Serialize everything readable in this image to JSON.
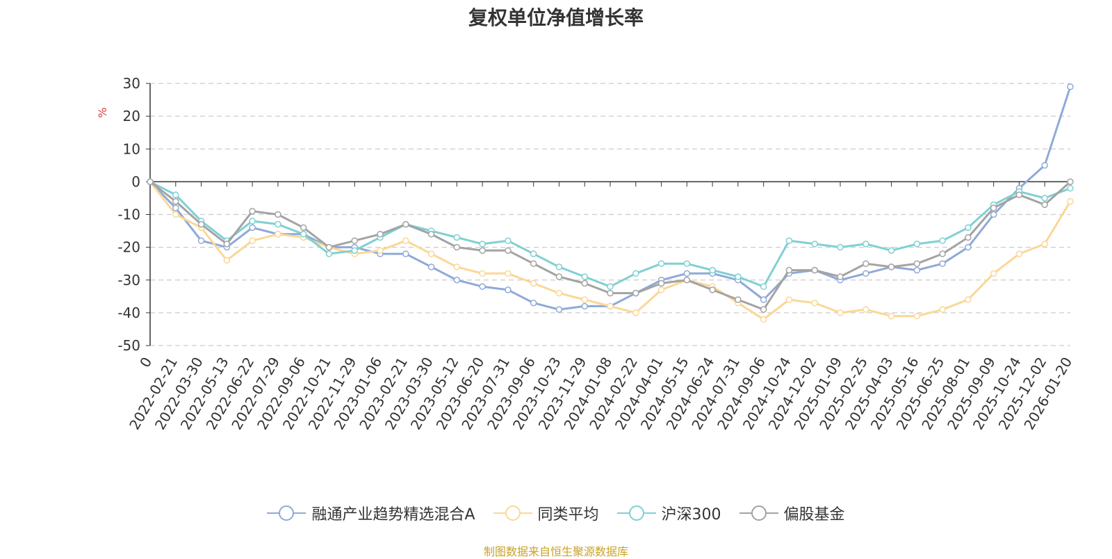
{
  "chart_data": {
    "type": "line",
    "title": "复权单位净值增长率",
    "ylabel": "%",
    "ylim": [
      -50,
      30
    ],
    "yticks": [
      30,
      20,
      10,
      0,
      -10,
      -20,
      -30,
      -40,
      -50
    ],
    "grid": true,
    "legend_position": "bottom-center",
    "x_tick_labels": [
      "0",
      "2022-02-21",
      "2022-03-30",
      "2022-05-13",
      "2022-06-22",
      "2022-07-29",
      "2022-09-06",
      "2022-10-21",
      "2022-11-29",
      "2023-01-06",
      "2023-02-21",
      "2023-03-30",
      "2023-05-12",
      "2023-06-20",
      "2023-07-31",
      "2023-09-06",
      "2023-10-23",
      "2023-11-29",
      "2024-01-08",
      "2024-02-22",
      "2024-04-01",
      "2024-05-15",
      "2024-06-24",
      "2024-07-31",
      "2024-09-06",
      "2024-10-24",
      "2024-12-02",
      "2025-01-09",
      "2025-02-25",
      "2025-04-03",
      "2025-05-16",
      "2025-06-25",
      "2025-08-01",
      "2025-09-09",
      "2025-10-24",
      "2025-12-02",
      "2026-01-20"
    ],
    "series": [
      {
        "name": "融通产业趋势精选混合A",
        "color": "#8fa9d8",
        "x": [
          0,
          1,
          2,
          3,
          4,
          5,
          6,
          7,
          8,
          9,
          10,
          11,
          12,
          13,
          14,
          15,
          16,
          17,
          18,
          19,
          20,
          21,
          22,
          23,
          24,
          25,
          26,
          27,
          28,
          29,
          30,
          31,
          32,
          33,
          34,
          35,
          36
        ],
        "values": [
          0,
          -8,
          -18,
          -20,
          -14,
          -16,
          -16,
          -20,
          -20,
          -22,
          -22,
          -26,
          -30,
          -32,
          -33,
          -37,
          -39,
          -38,
          -38,
          -34,
          -30,
          -28,
          -28,
          -30,
          -36,
          -28,
          -27,
          -30,
          -28,
          -26,
          -27,
          -25,
          -20,
          -10,
          -2,
          5,
          29
        ]
      },
      {
        "name": "同类平均",
        "color": "#fbd796",
        "x": [
          0,
          1,
          2,
          3,
          4,
          5,
          6,
          7,
          8,
          9,
          10,
          11,
          12,
          13,
          14,
          15,
          16,
          17,
          18,
          19,
          20,
          21,
          22,
          23,
          24,
          25,
          26,
          27,
          28,
          29,
          30,
          31,
          32,
          33,
          34,
          35,
          36
        ],
        "values": [
          0,
          -10,
          -14,
          -24,
          -18,
          -16,
          -17,
          -20,
          -22,
          -21,
          -18,
          -22,
          -26,
          -28,
          -28,
          -31,
          -34,
          -36,
          -38,
          -40,
          -33,
          -30,
          -32,
          -37,
          -42,
          -36,
          -37,
          -40,
          -39,
          -41,
          -41,
          -39,
          -36,
          -28,
          -22,
          -19,
          -6
        ]
      },
      {
        "name": "沪深300",
        "color": "#7fd0d3",
        "x": [
          0,
          1,
          2,
          3,
          4,
          5,
          6,
          7,
          8,
          9,
          10,
          11,
          12,
          13,
          14,
          15,
          16,
          17,
          18,
          19,
          20,
          21,
          22,
          23,
          24,
          25,
          26,
          27,
          28,
          29,
          30,
          31,
          32,
          33,
          34,
          35,
          36
        ],
        "values": [
          0,
          -4,
          -12,
          -18,
          -12,
          -13,
          -16,
          -22,
          -21,
          -17,
          -13,
          -15,
          -17,
          -19,
          -18,
          -22,
          -26,
          -29,
          -32,
          -28,
          -25,
          -25,
          -27,
          -29,
          -32,
          -18,
          -19,
          -20,
          -19,
          -21,
          -19,
          -18,
          -14,
          -7,
          -3,
          -5,
          -2
        ]
      },
      {
        "name": "偏股基金",
        "color": "#a3a3a3",
        "x": [
          0,
          1,
          2,
          3,
          4,
          5,
          6,
          7,
          8,
          9,
          10,
          11,
          12,
          13,
          14,
          15,
          16,
          17,
          18,
          19,
          20,
          21,
          22,
          23,
          24,
          25,
          26,
          27,
          28,
          29,
          30,
          31,
          32,
          33,
          34,
          35,
          36
        ],
        "values": [
          0,
          -6,
          -13,
          -19,
          -9,
          -10,
          -14,
          -20,
          -18,
          -16,
          -13,
          -16,
          -20,
          -21,
          -21,
          -25,
          -29,
          -31,
          -34,
          -34,
          -31,
          -30,
          -33,
          -36,
          -39,
          -27,
          -27,
          -29,
          -25,
          -26,
          -25,
          -22,
          -17,
          -8,
          -4,
          -7,
          0
        ]
      }
    ]
  },
  "footer": "制图数据来自恒生聚源数据库"
}
